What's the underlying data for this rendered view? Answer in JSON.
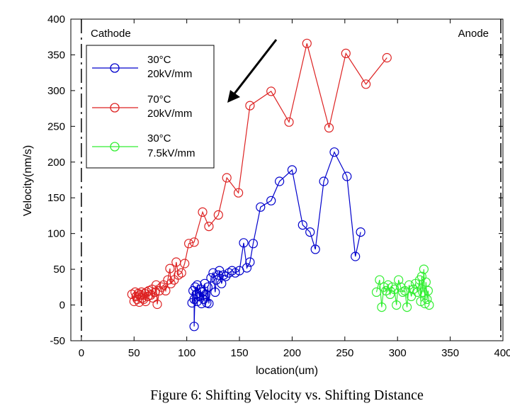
{
  "chart_data": {
    "type": "scatter",
    "title": "",
    "xlabel": "location(um)",
    "ylabel": "Velocity(nm/s)",
    "xlim": [
      -10,
      400
    ],
    "ylim": [
      -50,
      400
    ],
    "xticks": [
      0,
      50,
      100,
      150,
      200,
      250,
      300,
      350,
      400
    ],
    "yticks": [
      -50,
      0,
      50,
      100,
      150,
      200,
      250,
      300,
      350,
      400
    ],
    "grid": false,
    "legend_position": "top-left",
    "annotations": {
      "cathode": "Cathode",
      "anode": "Anode",
      "arrow": "direction"
    },
    "series": [
      {
        "name": "30°C 20kV/mm",
        "label_line1": "30°C",
        "label_line2": "20kV/mm",
        "color": "#0000cc",
        "points": [
          [
            105,
            3
          ],
          [
            106,
            20
          ],
          [
            107,
            8
          ],
          [
            107,
            -30
          ],
          [
            108,
            25
          ],
          [
            109,
            15
          ],
          [
            110,
            5
          ],
          [
            110,
            28
          ],
          [
            112,
            12
          ],
          [
            113,
            22
          ],
          [
            114,
            2
          ],
          [
            115,
            18
          ],
          [
            116,
            8
          ],
          [
            117,
            30
          ],
          [
            118,
            15
          ],
          [
            119,
            3
          ],
          [
            120,
            25
          ],
          [
            121,
            2
          ],
          [
            123,
            38
          ],
          [
            125,
            45
          ],
          [
            127,
            18
          ],
          [
            128,
            35
          ],
          [
            130,
            42
          ],
          [
            131,
            48
          ],
          [
            133,
            30
          ],
          [
            135,
            42
          ],
          [
            137,
            40
          ],
          [
            140,
            45
          ],
          [
            143,
            48
          ],
          [
            146,
            45
          ],
          [
            150,
            48
          ],
          [
            154,
            87
          ],
          [
            157,
            52
          ],
          [
            160,
            60
          ],
          [
            163,
            86
          ],
          [
            170,
            137
          ],
          [
            180,
            146
          ],
          [
            188,
            173
          ],
          [
            200,
            189
          ],
          [
            210,
            112
          ],
          [
            217,
            102
          ],
          [
            222,
            78
          ],
          [
            230,
            173
          ],
          [
            240,
            214
          ],
          [
            252,
            180
          ],
          [
            260,
            68
          ],
          [
            265,
            102
          ]
        ]
      },
      {
        "name": "70°C 20kV/mm",
        "label_line1": "70°C",
        "label_line2": "20kV/mm",
        "color": "#dd2222",
        "points": [
          [
            48,
            15
          ],
          [
            50,
            5
          ],
          [
            51,
            18
          ],
          [
            52,
            12
          ],
          [
            53,
            8
          ],
          [
            54,
            16
          ],
          [
            55,
            4
          ],
          [
            56,
            14
          ],
          [
            57,
            18
          ],
          [
            58,
            10
          ],
          [
            59,
            8
          ],
          [
            60,
            16
          ],
          [
            61,
            5
          ],
          [
            62,
            18
          ],
          [
            63,
            12
          ],
          [
            64,
            20
          ],
          [
            66,
            14
          ],
          [
            67,
            22
          ],
          [
            68,
            10
          ],
          [
            70,
            18
          ],
          [
            71,
            28
          ],
          [
            72,
            1
          ],
          [
            74,
            20
          ],
          [
            76,
            25
          ],
          [
            78,
            28
          ],
          [
            80,
            20
          ],
          [
            82,
            35
          ],
          [
            84,
            51
          ],
          [
            85,
            30
          ],
          [
            88,
            35
          ],
          [
            90,
            60
          ],
          [
            92,
            42
          ],
          [
            95,
            45
          ],
          [
            98,
            58
          ],
          [
            102,
            86
          ],
          [
            107,
            88
          ],
          [
            115,
            130
          ],
          [
            121,
            110
          ],
          [
            130,
            126
          ],
          [
            138,
            178
          ],
          [
            149,
            157
          ],
          [
            160,
            279
          ],
          [
            180,
            299
          ],
          [
            197,
            256
          ],
          [
            214,
            366
          ],
          [
            235,
            248
          ],
          [
            251,
            352
          ],
          [
            270,
            309
          ],
          [
            290,
            346
          ]
        ]
      },
      {
        "name": "30°C 7.5kV/mm",
        "label_line1": "30°C",
        "label_line2": "7.5kV/mm",
        "color": "#33ee33",
        "points": [
          [
            280,
            18
          ],
          [
            283,
            35
          ],
          [
            285,
            -3
          ],
          [
            287,
            25
          ],
          [
            289,
            20
          ],
          [
            291,
            28
          ],
          [
            293,
            15
          ],
          [
            295,
            25
          ],
          [
            297,
            22
          ],
          [
            299,
            0
          ],
          [
            301,
            35
          ],
          [
            303,
            25
          ],
          [
            305,
            18
          ],
          [
            307,
            20
          ],
          [
            309,
            -3
          ],
          [
            311,
            28
          ],
          [
            313,
            12
          ],
          [
            315,
            22
          ],
          [
            317,
            30
          ],
          [
            319,
            18
          ],
          [
            321,
            35
          ],
          [
            322,
            5
          ],
          [
            323,
            40
          ],
          [
            324,
            18
          ],
          [
            325,
            50
          ],
          [
            326,
            2
          ],
          [
            327,
            32
          ],
          [
            328,
            8
          ],
          [
            329,
            20
          ],
          [
            330,
            0
          ]
        ]
      }
    ]
  },
  "caption": "Figure 6: Shifting Velocity vs. Shifting Distance"
}
